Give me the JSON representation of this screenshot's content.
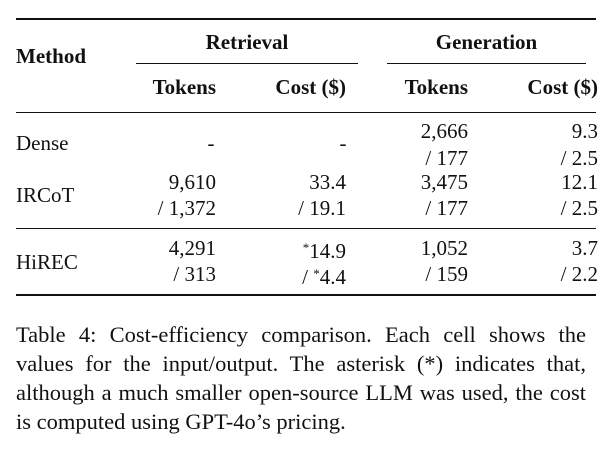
{
  "table": {
    "header": {
      "method": "Method",
      "groups": {
        "retrieval": "Retrieval",
        "generation": "Generation"
      },
      "subcols": {
        "retrieval_tokens": "Tokens",
        "retrieval_cost": "Cost ($)",
        "generation_tokens": "Tokens",
        "generation_cost": "Cost ($)"
      }
    },
    "rows": [
      {
        "method": "Dense",
        "retrieval_tokens": {
          "input": "-",
          "output": ""
        },
        "retrieval_cost": {
          "input": "-",
          "output": ""
        },
        "generation_tokens": {
          "input": "2,666",
          "output": "/ 177"
        },
        "generation_cost": {
          "input": "9.3",
          "output": "/ 2.5"
        }
      },
      {
        "method": "IRCoT",
        "retrieval_tokens": {
          "input": "9,610",
          "output": "/ 1,372"
        },
        "retrieval_cost": {
          "input": "33.4",
          "output": "/ 19.1"
        },
        "generation_tokens": {
          "input": "3,475",
          "output": "/ 177"
        },
        "generation_cost": {
          "input": "12.1",
          "output": "/ 2.5"
        }
      },
      {
        "method": "HiREC",
        "retrieval_tokens": {
          "input": "4,291",
          "output": "/ 313"
        },
        "retrieval_cost": {
          "input_star": "*",
          "input": "14.9",
          "output_prefix": "/ ",
          "output_star": "*",
          "output": "4.4"
        },
        "generation_tokens": {
          "input": "1,052",
          "output": "/ 159"
        },
        "generation_cost": {
          "input": "3.7",
          "output": "/ 2.2"
        }
      }
    ]
  },
  "caption": {
    "label": "Table 4:",
    "text": "Cost-efficiency comparison. Each cell shows the values for the input/output. The asterisk (*) indicates that, although a much smaller open-source LLM was used, the cost is computed using GPT-4o’s pricing."
  }
}
